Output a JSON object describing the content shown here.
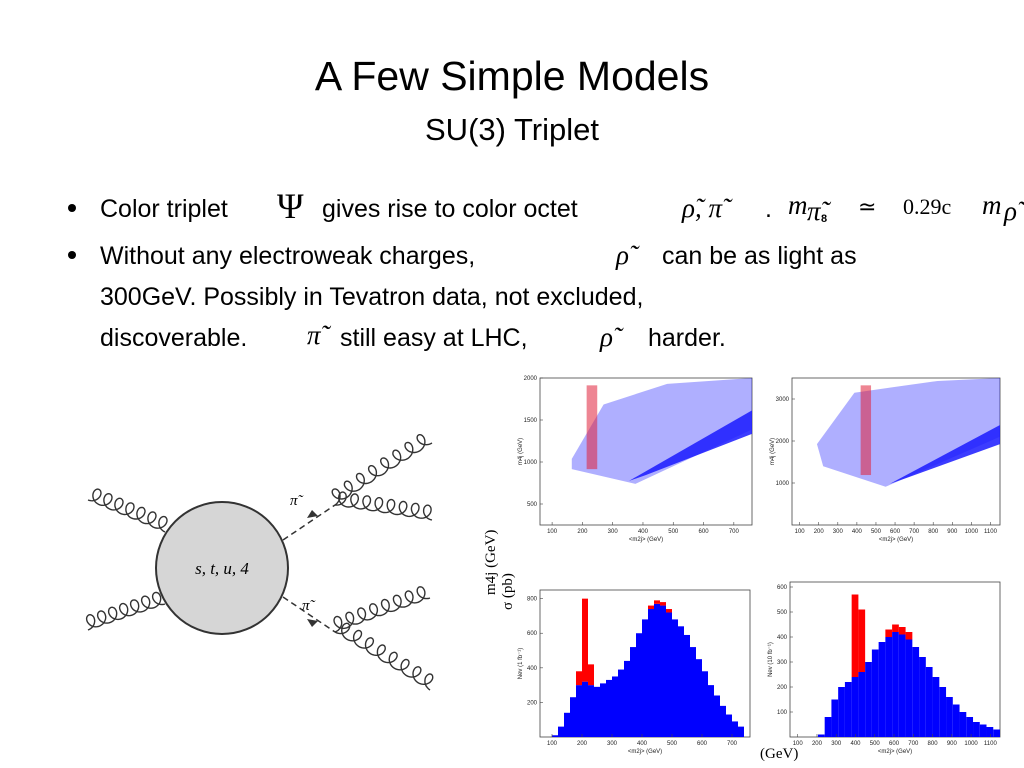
{
  "title": "A Few Simple Models",
  "subtitle": "SU(3) Triplet",
  "bullets": [
    {
      "segments": [
        "Color triplet",
        "Ψ",
        "gives rise to color octet",
        "ρ̃, π̃",
        ".",
        "m",
        "π̃",
        "8",
        "≃",
        "0.29c",
        "m",
        "ρ̃"
      ]
    },
    {
      "segments": [
        "Without any electroweak charges,",
        "ρ̃",
        "can be as light as",
        "300GeV. Possibly in Tevatron data, not excluded,",
        "discoverable.",
        "π̃",
        "still easy at LHC,",
        "ρ̃",
        "harder."
      ]
    }
  ],
  "diagram": {
    "vertex_label": "s, t, u, 4",
    "outgoing_labels": [
      "π̃",
      "π̃"
    ]
  },
  "plots": [
    {
      "type": "scatter",
      "xlabel": "<m2j> (GeV)",
      "ylabel": "m4j (GeV)",
      "xlim": [
        60,
        760
      ],
      "ylim": [
        250,
        2000
      ],
      "xticks": [
        100,
        200,
        300,
        400,
        500,
        600,
        700
      ],
      "yticks": [
        500,
        1000,
        1500,
        2000
      ],
      "color": "#1a1aff",
      "signal_color": "#e0203a"
    },
    {
      "type": "scatter",
      "xlabel": "<m2j> (GeV)",
      "ylabel": "m4j (GeV)",
      "xlim": [
        60,
        1150
      ],
      "ylim": [
        0,
        3500
      ],
      "xticks": [
        100,
        200,
        300,
        400,
        500,
        600,
        700,
        800,
        900,
        1000,
        1100
      ],
      "yticks": [
        1000,
        2000,
        3000
      ],
      "color": "#1a1aff",
      "signal_color": "#e0203a"
    },
    {
      "type": "histogram",
      "xlabel": "<m2j> (GeV)",
      "ylabel": "Nev (1 fb⁻¹)",
      "xlim": [
        60,
        760
      ],
      "ylim": [
        0,
        850
      ],
      "xticks": [
        100,
        200,
        300,
        400,
        500,
        600,
        700
      ],
      "yticks": [
        200,
        400,
        600,
        800
      ],
      "color": "#0000ff",
      "signal_color": "#ff0000",
      "bins": [
        100,
        120,
        140,
        160,
        180,
        200,
        220,
        240,
        260,
        280,
        300,
        320,
        340,
        360,
        380,
        400,
        420,
        440,
        460,
        480,
        500,
        520,
        540,
        560,
        580,
        600,
        620,
        640,
        660,
        680,
        700,
        720,
        740
      ],
      "background": [
        10,
        60,
        140,
        230,
        300,
        320,
        300,
        290,
        310,
        330,
        350,
        390,
        440,
        520,
        600,
        680,
        740,
        770,
        760,
        720,
        680,
        640,
        590,
        520,
        450,
        380,
        300,
        240,
        180,
        130,
        90,
        60
      ],
      "signal": [
        0,
        0,
        0,
        0,
        80,
        480,
        120,
        0,
        0,
        0,
        0,
        0,
        0,
        0,
        0,
        0,
        20,
        20,
        20,
        20,
        0,
        0,
        0,
        0,
        0,
        0,
        0,
        0,
        0,
        0,
        0,
        0
      ]
    },
    {
      "type": "histogram",
      "xlabel": "<m2j> (GeV)",
      "ylabel": "Nev (10 fb⁻¹)",
      "xlim": [
        60,
        1150
      ],
      "ylim": [
        0,
        620
      ],
      "xticks": [
        100,
        200,
        300,
        400,
        500,
        600,
        700,
        800,
        900,
        1000,
        1100
      ],
      "yticks": [
        100,
        200,
        300,
        400,
        500,
        600
      ],
      "color": "#0000ff",
      "signal_color": "#ff0000",
      "bins": [
        100,
        135,
        170,
        205,
        240,
        275,
        310,
        345,
        380,
        415,
        450,
        485,
        520,
        555,
        590,
        625,
        660,
        695,
        730,
        765,
        800,
        835,
        870,
        905,
        940,
        975,
        1010,
        1045,
        1080,
        1115,
        1150
      ],
      "background": [
        0,
        0,
        0,
        10,
        80,
        150,
        200,
        220,
        240,
        260,
        300,
        350,
        380,
        400,
        420,
        410,
        390,
        360,
        320,
        280,
        240,
        200,
        160,
        130,
        100,
        80,
        60,
        50,
        40,
        30
      ],
      "signal": [
        0,
        0,
        0,
        0,
        0,
        0,
        0,
        0,
        330,
        250,
        0,
        0,
        0,
        30,
        30,
        30,
        30,
        0,
        0,
        0,
        0,
        0,
        0,
        0,
        0,
        0,
        0,
        0,
        0,
        0
      ]
    }
  ],
  "stray_labels": [
    "m4j (GeV)",
    "σ (pb)",
    "(GeV)"
  ]
}
